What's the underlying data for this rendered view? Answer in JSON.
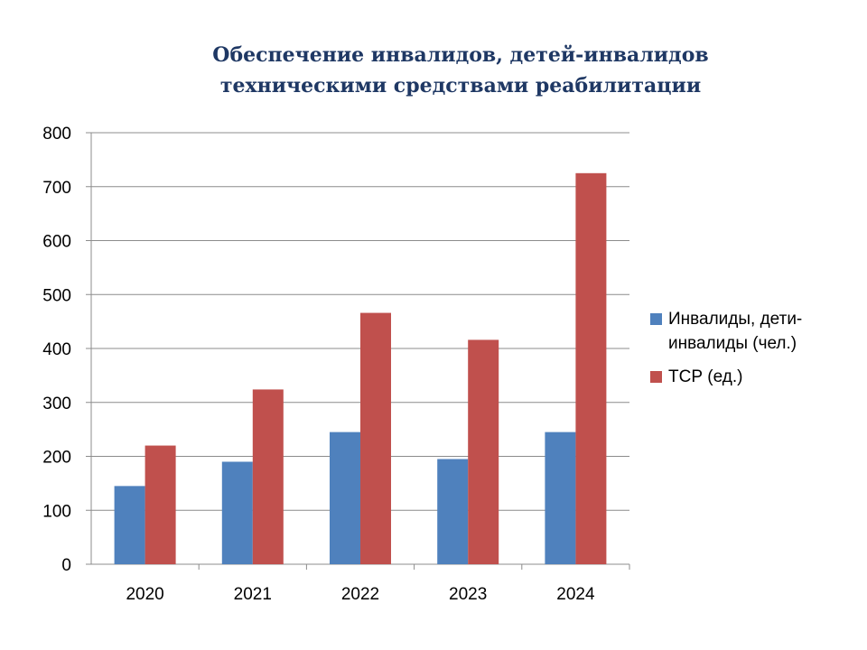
{
  "chart_data": {
    "type": "bar",
    "title_lines": [
      "Обеспечение инвалидов, детей-инвалидов",
      "техническими средствами реабилитации"
    ],
    "categories": [
      "2020",
      "2021",
      "2022",
      "2023",
      "2024"
    ],
    "series": [
      {
        "name": "Инвалиды, дети-инвалиды (чел.)",
        "color": "#4f81bd",
        "values": [
          145,
          190,
          245,
          195,
          245
        ]
      },
      {
        "name": "ТСР (ед.)",
        "color": "#c0504d",
        "values": [
          220,
          324,
          466,
          416,
          725
        ]
      }
    ],
    "ylim": [
      0,
      800
    ],
    "yticks": [
      "0",
      "100",
      "200",
      "300",
      "400",
      "500",
      "600",
      "700",
      "800"
    ],
    "grid": true,
    "legend_position": "right"
  },
  "legend": {
    "item_0_line_1": "Инвалиды, дети-",
    "item_0_line_2": "инвалиды (чел.)",
    "item_1_label": "ТСР (ед.)"
  }
}
